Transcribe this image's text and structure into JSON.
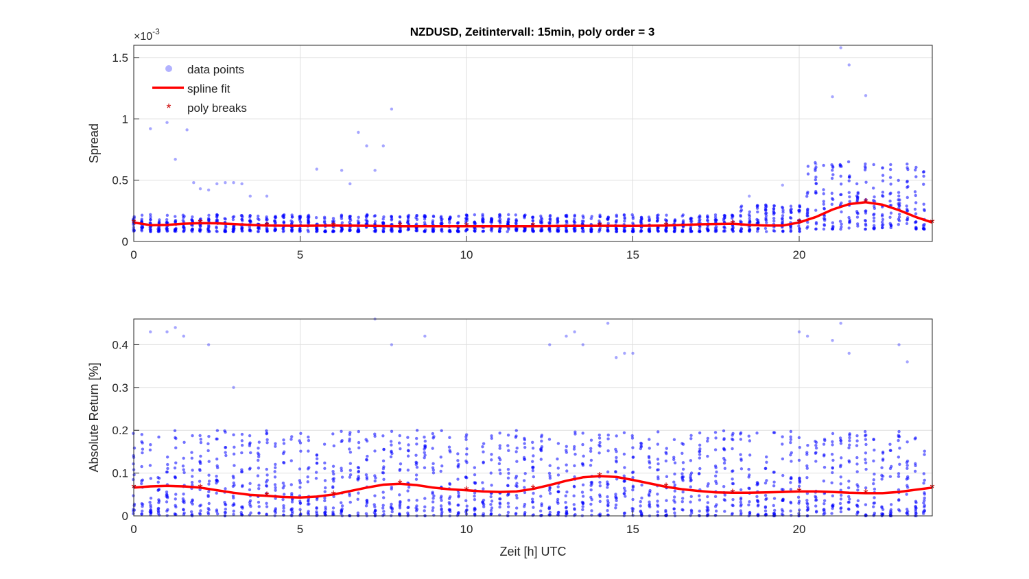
{
  "figure_title": "NZDUSD, Zeitintervall: 15min, poly order = 3",
  "colors": {
    "points": "#0000ff",
    "spline": "#ff0000",
    "breaks": "#cc0000",
    "grid": "#dedede",
    "axes": "#262626"
  },
  "legend": {
    "placement": "top-left",
    "entries": [
      "data points",
      "spline fit",
      "poly breaks"
    ]
  },
  "chart_data": [
    {
      "type": "scatter",
      "title": "NZDUSD, Zeitintervall: 15min, poly order = 3",
      "xlabel": "",
      "ylabel": "Spread",
      "y_exponent_label": "×10",
      "y_exponent_power": "-3",
      "xlim": [
        0,
        24
      ],
      "ylim": [
        0,
        1.6
      ],
      "xticks": [
        0,
        5,
        10,
        15,
        20
      ],
      "yticks": [
        0,
        0.5,
        1,
        1.5
      ],
      "xtick_labels": [
        "0",
        "5",
        "10",
        "15",
        "20"
      ],
      "ytick_labels": [
        "0",
        "0.5",
        "1",
        "1.5"
      ],
      "grid": true,
      "series": [
        {
          "name": "spline fit",
          "kind": "line",
          "x": [
            0,
            0.5,
            1,
            1.5,
            2,
            2.5,
            3,
            3.5,
            4,
            5,
            6,
            7,
            8,
            9,
            10,
            11,
            12,
            13,
            14,
            15,
            16,
            17,
            18,
            18.5,
            19,
            19.5,
            20,
            20.5,
            21,
            21.5,
            22,
            22.5,
            23,
            23.5,
            24
          ],
          "y": [
            0.155,
            0.133,
            0.135,
            0.145,
            0.15,
            0.148,
            0.142,
            0.135,
            0.13,
            0.128,
            0.13,
            0.128,
            0.125,
            0.125,
            0.125,
            0.125,
            0.125,
            0.127,
            0.128,
            0.127,
            0.13,
            0.14,
            0.145,
            0.135,
            0.13,
            0.13,
            0.155,
            0.2,
            0.26,
            0.305,
            0.32,
            0.3,
            0.255,
            0.2,
            0.155
          ]
        },
        {
          "name": "poly breaks",
          "kind": "marker",
          "x": [
            0,
            2,
            4,
            6,
            8,
            10,
            12,
            14,
            16,
            18,
            20,
            22,
            24
          ],
          "y": [
            0.155,
            0.15,
            0.13,
            0.13,
            0.125,
            0.125,
            0.125,
            0.128,
            0.13,
            0.145,
            0.155,
            0.32,
            0.155
          ]
        },
        {
          "name": "data points",
          "kind": "scatter_outliers",
          "x": [
            0.5,
            1,
            1.25,
            1.6,
            1.8,
            2,
            2.25,
            2.5,
            2.75,
            3,
            3.25,
            3.5,
            4,
            5.5,
            6.25,
            6.5,
            6.75,
            7,
            7.25,
            7.5,
            7.75,
            18.5,
            19.5,
            20.5,
            21,
            21.25,
            21.5,
            22,
            22.5
          ],
          "y": [
            0.92,
            0.97,
            0.67,
            0.91,
            0.48,
            0.43,
            0.42,
            0.47,
            0.48,
            0.48,
            0.47,
            0.37,
            0.37,
            0.59,
            0.58,
            0.47,
            0.89,
            0.78,
            0.58,
            0.78,
            1.08,
            0.37,
            0.46,
            0.63,
            1.18,
            1.58,
            1.44,
            1.19,
            0.6
          ]
        }
      ],
      "scatter_envelope": [
        {
          "x0": 0,
          "x1": 18,
          "low": 0.08,
          "high": 0.22
        },
        {
          "x0": 18,
          "x1": 20,
          "low": 0.08,
          "high": 0.3
        },
        {
          "x0": 20,
          "x1": 24,
          "low": 0.1,
          "high": 0.65
        }
      ]
    },
    {
      "type": "scatter",
      "title": "",
      "xlabel": "Zeit [h] UTC",
      "ylabel": "Absolute Return [%]",
      "xlim": [
        0,
        24
      ],
      "ylim": [
        0,
        0.46
      ],
      "xticks": [
        0,
        5,
        10,
        15,
        20
      ],
      "yticks": [
        0,
        0.1,
        0.2,
        0.3,
        0.4
      ],
      "xtick_labels": [
        "0",
        "5",
        "10",
        "15",
        "20"
      ],
      "ytick_labels": [
        "0",
        "0.1",
        "0.2",
        "0.3",
        "0.4"
      ],
      "grid": true,
      "series": [
        {
          "name": "spline fit",
          "kind": "line",
          "x": [
            0,
            0.5,
            1,
            1.5,
            2,
            2.5,
            3,
            3.5,
            4,
            4.5,
            5,
            5.5,
            6,
            6.5,
            7,
            7.5,
            8,
            8.5,
            9,
            9.5,
            10,
            10.5,
            11,
            11.5,
            12,
            12.5,
            13,
            13.5,
            14,
            14.5,
            15,
            15.5,
            16,
            16.5,
            17,
            17.5,
            18,
            18.5,
            19,
            19.5,
            20,
            20.5,
            21,
            21.5,
            22,
            22.5,
            23,
            23.5,
            24
          ],
          "y": [
            0.066,
            0.069,
            0.07,
            0.069,
            0.066,
            0.06,
            0.054,
            0.049,
            0.047,
            0.044,
            0.043,
            0.045,
            0.05,
            0.058,
            0.066,
            0.073,
            0.075,
            0.072,
            0.066,
            0.062,
            0.06,
            0.057,
            0.056,
            0.057,
            0.063,
            0.072,
            0.082,
            0.09,
            0.093,
            0.091,
            0.084,
            0.076,
            0.068,
            0.062,
            0.058,
            0.055,
            0.054,
            0.054,
            0.055,
            0.056,
            0.057,
            0.057,
            0.056,
            0.054,
            0.053,
            0.053,
            0.056,
            0.061,
            0.066
          ]
        },
        {
          "name": "poly breaks",
          "kind": "marker",
          "x": [
            0,
            2,
            4,
            6,
            8,
            10,
            12,
            14,
            16,
            18,
            20,
            22,
            24
          ],
          "y": [
            0.066,
            0.066,
            0.047,
            0.05,
            0.075,
            0.06,
            0.063,
            0.093,
            0.068,
            0.054,
            0.057,
            0.053,
            0.066
          ]
        },
        {
          "name": "data points",
          "kind": "scatter_outliers",
          "x": [
            0.5,
            1,
            1.25,
            1.5,
            2.25,
            3,
            7.25,
            7.75,
            8.75,
            12.5,
            13,
            13.25,
            13.5,
            14.25,
            14.5,
            14.75,
            15,
            20,
            20.25,
            21,
            21.25,
            21.5,
            23,
            23.25
          ],
          "y": [
            0.43,
            0.43,
            0.44,
            0.42,
            0.4,
            0.3,
            0.46,
            0.4,
            0.42,
            0.4,
            0.42,
            0.43,
            0.4,
            0.45,
            0.37,
            0.38,
            0.38,
            0.43,
            0.42,
            0.41,
            0.45,
            0.38,
            0.4,
            0.36
          ]
        }
      ],
      "scatter_envelope": [
        {
          "x0": 0,
          "x1": 24,
          "low": 0.0,
          "high": 0.2
        }
      ]
    }
  ]
}
